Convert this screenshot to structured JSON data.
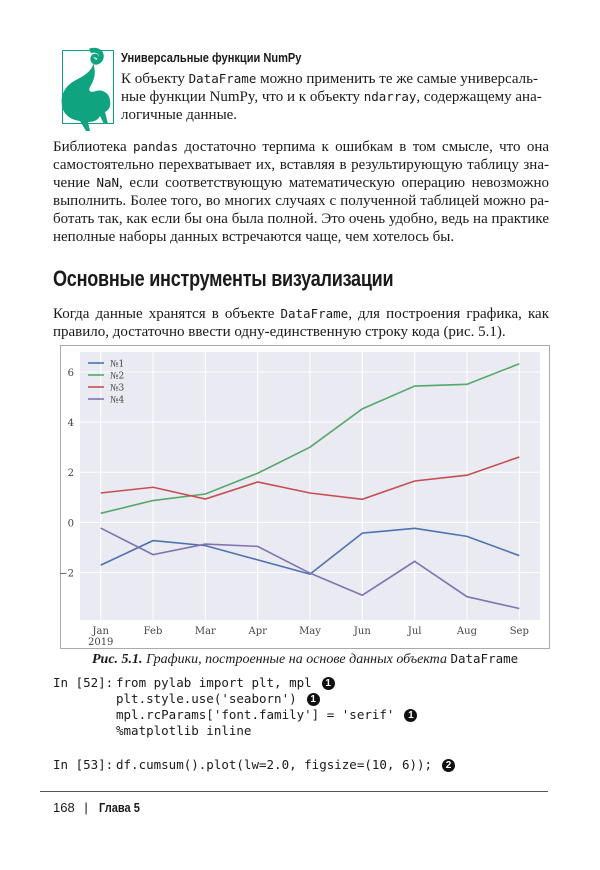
{
  "note": {
    "icon": "lemur-icon",
    "icon_color": "#10a37f",
    "title": "Универсальные функции NumPy",
    "lines": [
      [
        {
          "t": "К объекту "
        },
        {
          "t": "DataFrame",
          "code": true
        },
        {
          "t": " можно применить те же самые универсаль-"
        }
      ],
      [
        {
          "t": "ные функции NumPy, что и к объекту "
        },
        {
          "t": "ndarray",
          "code": true
        },
        {
          "t": ", содержащему ана-"
        }
      ],
      [
        {
          "t": "логичные данные."
        }
      ]
    ]
  },
  "paragraph1": [
    [
      {
        "t": "Библиотека "
      },
      {
        "t": "pandas",
        "code": true
      },
      {
        "t": " достаточно терпима к ошибкам в том смысле, что она"
      }
    ],
    [
      {
        "t": "самостоятельно перехватывает их, вставляя в результирующую таблицу зна-"
      }
    ],
    [
      {
        "t": "чение "
      },
      {
        "t": "NaN",
        "code": true
      },
      {
        "t": ", если соответствующую математическую операцию невозможно"
      }
    ],
    [
      {
        "t": "выполнить. Более того, во многих случаях с полученной таблицей можно ра-"
      }
    ],
    [
      {
        "t": "ботать так, как если бы она была полной. Это очень удобно, ведь на практике"
      }
    ],
    [
      {
        "t": "неполные наборы данных встречаются чаще, чем хотелось бы."
      }
    ]
  ],
  "section_heading": "Основные инструменты визуализации",
  "paragraph2": [
    [
      {
        "t": "Когда данные хранятся в объекте "
      },
      {
        "t": "DataFrame",
        "code": true
      },
      {
        "t": ", для построения графика, как"
      }
    ],
    [
      {
        "t": "правило, достаточно ввести одну-единственную строку кода (рис. 5.1)."
      }
    ]
  ],
  "chart_data": {
    "type": "line",
    "categories": [
      "Jan\n2019",
      "Feb",
      "Mar",
      "Apr",
      "May",
      "Jun",
      "Jul",
      "Aug",
      "Sep"
    ],
    "yticks": [
      -2,
      0,
      2,
      4,
      6
    ],
    "ytick_labels": [
      "−2",
      "0",
      "2",
      "4",
      "6"
    ],
    "ylim": [
      -3.9,
      6.8
    ],
    "grid": true,
    "legend_placement": "upper-left",
    "background": "#eaeaf2",
    "series": [
      {
        "name": "№1",
        "color": "#4c72b0",
        "values": [
          -1.71,
          -0.73,
          -0.93,
          -1.5,
          -2.07,
          -0.43,
          -0.24,
          -0.56,
          -1.33
        ]
      },
      {
        "name": "№2",
        "color": "#55a868",
        "values": [
          0.36,
          0.87,
          1.13,
          1.96,
          3.0,
          4.53,
          5.44,
          5.51,
          6.33
        ]
      },
      {
        "name": "№3",
        "color": "#c44e52",
        "values": [
          1.17,
          1.4,
          0.93,
          1.61,
          1.17,
          0.92,
          1.65,
          1.88,
          2.61
        ]
      },
      {
        "name": "№4",
        "color": "#8172b2",
        "values": [
          -0.23,
          -1.29,
          -0.87,
          -0.96,
          -2.03,
          -2.91,
          -1.56,
          -2.97,
          -3.44
        ]
      }
    ]
  },
  "caption": {
    "prefix": "Рис. 5.1. ",
    "text": "Графики, построенные на основе данных объекта ",
    "code": "DataFrame"
  },
  "code": {
    "cell1_prompt": "In [52]:",
    "cell1_lines": [
      {
        "text": "from pylab import plt, mpl",
        "callout": "1"
      },
      {
        "text": "plt.style.use('seaborn')",
        "callout": "1"
      },
      {
        "text": "mpl.rcParams['font.family'] = 'serif'",
        "callout": "1"
      },
      {
        "text": "%matplotlib inline",
        "callout": ""
      }
    ],
    "cell2_prompt": "In [53]:",
    "cell2_line": {
      "text": "df.cumsum().plot(lw=2.0, figsize=(10, 6));",
      "callout": "2"
    }
  },
  "footer": {
    "page_number": "168",
    "separator": "|",
    "chapter": "Глава 5"
  }
}
